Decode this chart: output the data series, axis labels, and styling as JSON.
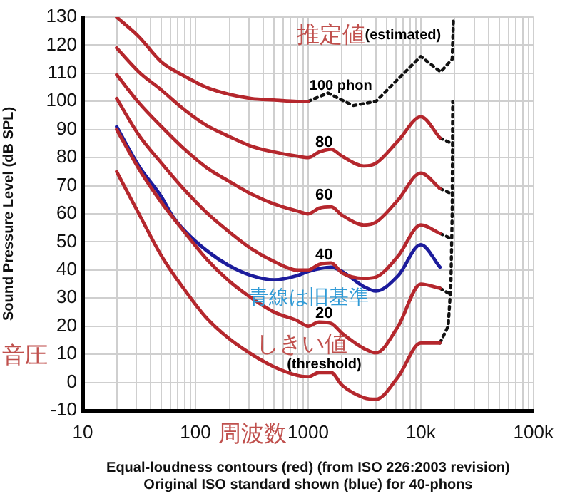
{
  "chart_data": {
    "type": "line",
    "xlabel": "Equal-loudness contours (red) (from ISO 226:2003 revision)\nOriginal ISO standard shown (blue) for 40-phons",
    "ylabel": "Sound Pressure Level (dB SPL)",
    "log": "x",
    "xlim": [
      10,
      100000
    ],
    "ylim": [
      -10,
      130
    ],
    "xticks": [
      10,
      {
        "value": 20,
        "label": null
      },
      {
        "value": 30,
        "label": null
      },
      {
        "value": 40,
        "label": null
      },
      {
        "value": 50,
        "label": null
      },
      {
        "value": 60,
        "label": null
      },
      {
        "value": 70,
        "label": null
      },
      {
        "value": 80,
        "label": null
      },
      {
        "value": 90,
        "label": null
      },
      100,
      {
        "value": 200,
        "label": null
      },
      {
        "value": 300,
        "label": null
      },
      {
        "value": 400,
        "label": null
      },
      {
        "value": 500,
        "label": null
      },
      {
        "value": 600,
        "label": null
      },
      {
        "value": 700,
        "label": null
      },
      {
        "value": 800,
        "label": null
      },
      {
        "value": 900,
        "label": null
      },
      1000,
      {
        "value": 2000,
        "label": null
      },
      {
        "value": 3000,
        "label": null
      },
      {
        "value": 4000,
        "label": null
      },
      {
        "value": 5000,
        "label": null
      },
      {
        "value": 6000,
        "label": null
      },
      {
        "value": 7000,
        "label": null
      },
      {
        "value": 8000,
        "label": null
      },
      {
        "value": 9000,
        "label": null
      },
      {
        "value": 10000,
        "label": "10k"
      },
      {
        "value": 20000,
        "label": null
      },
      {
        "value": 30000,
        "label": null
      },
      {
        "value": 40000,
        "label": null
      },
      {
        "value": 50000,
        "label": null
      },
      {
        "value": 60000,
        "label": null
      },
      {
        "value": 70000,
        "label": null
      },
      {
        "value": 80000,
        "label": null
      },
      {
        "value": 90000,
        "label": null
      },
      {
        "value": 100000,
        "label": "100k"
      }
    ],
    "yticks": [
      -10,
      0,
      10,
      20,
      30,
      40,
      50,
      60,
      70,
      80,
      90,
      100,
      110,
      120,
      130
    ],
    "grid": true,
    "legend": false,
    "marker": "none",
    "series": [
      {
        "color": "#b5272d",
        "line_style": "solid",
        "x": [
          20,
          31.5,
          50,
          80,
          125,
          200,
          315,
          500,
          800,
          1000
        ],
        "values": [
          130,
          123,
          114,
          109,
          105,
          102.5,
          101,
          100.5,
          100,
          100
        ]
      },
      {
        "color": "#b5272d",
        "line_style": "solid",
        "x": [
          20,
          31.5,
          50,
          80,
          125,
          200,
          315,
          500,
          800,
          1000,
          1250,
          1600,
          2000,
          3150,
          4000,
          6300,
          10000,
          14800
        ],
        "values": [
          119,
          110.5,
          104,
          97,
          91.5,
          87.5,
          84,
          82,
          80.5,
          80,
          82,
          83,
          80.5,
          77,
          78,
          86,
          94.5,
          87
        ]
      },
      {
        "color": "#b5272d",
        "line_style": "solid",
        "x": [
          20,
          31.5,
          50,
          80,
          125,
          200,
          315,
          500,
          800,
          1000,
          1250,
          1600,
          2000,
          3150,
          4000,
          6300,
          10000,
          14800
        ],
        "values": [
          109.5,
          99.5,
          91,
          83,
          76.5,
          71.5,
          67,
          63.5,
          61,
          60,
          62,
          62.5,
          59.5,
          56,
          57,
          65,
          74.5,
          69
        ]
      },
      {
        "color": "#b5272d",
        "line_style": "solid",
        "x": [
          20,
          31.5,
          50,
          80,
          125,
          200,
          315,
          500,
          800,
          1000,
          1250,
          1600,
          2000,
          3150,
          4000,
          6300,
          10000,
          14800
        ],
        "values": [
          101,
          88,
          78,
          68.5,
          60.5,
          53.5,
          47.5,
          43,
          40,
          40,
          42,
          42.5,
          39,
          37,
          37.5,
          45,
          56,
          53
        ]
      },
      {
        "color": "#b5272d",
        "line_style": "solid",
        "x": [
          20,
          31.5,
          50,
          80,
          125,
          200,
          315,
          500,
          800,
          1000,
          1250,
          1600,
          2000,
          3150,
          4000,
          6300,
          10000,
          14800
        ],
        "values": [
          90,
          76,
          64,
          53.5,
          44,
          36,
          30,
          25,
          22,
          20,
          21.5,
          21,
          17.5,
          12,
          10.5,
          20,
          35,
          33.5
        ]
      },
      {
        "color": "#b5272d",
        "line_style": "solid",
        "x": [
          20,
          31.5,
          50,
          80,
          125,
          200,
          315,
          500,
          800,
          1000,
          1250,
          1600,
          2000,
          3150,
          4000,
          6300,
          10000,
          14800
        ],
        "values": [
          75,
          60,
          45,
          33,
          23,
          15.5,
          10,
          5.5,
          2.5,
          2,
          3.5,
          3.5,
          -1,
          -5.5,
          -6,
          2,
          14,
          14
        ]
      },
      {
        "color": "#1c1c9c",
        "line_style": "solid",
        "x": [
          20,
          31.5,
          50,
          63,
          80,
          125,
          200,
          315,
          500,
          800,
          1000,
          1600,
          2000,
          3150,
          4000,
          6300,
          10000,
          14800
        ],
        "values": [
          91,
          77,
          66,
          59,
          54,
          47,
          41.5,
          38,
          36.5,
          38,
          39.5,
          41,
          39.5,
          34,
          32.5,
          38,
          49,
          41
        ]
      },
      {
        "color": "#111111",
        "line_style": "dotted",
        "x": [
          1000,
          1500,
          2500,
          4000,
          6300,
          10000,
          15000,
          19000,
          19500
        ],
        "values": [
          100,
          103,
          98.5,
          100,
          108,
          116,
          110.5,
          115,
          130
        ]
      },
      {
        "color": "#111111",
        "line_style": "dotted",
        "x": [
          14800,
          17500,
          18500,
          19000,
          19200
        ],
        "values": [
          14,
          20,
          35,
          60,
          100
        ]
      },
      {
        "color": "#111111",
        "line_style": "dotted",
        "x": [
          14800,
          19000
        ],
        "values": [
          87,
          85
        ]
      },
      {
        "color": "#111111",
        "line_style": "dotted",
        "x": [
          14800,
          19000
        ],
        "values": [
          69,
          67
        ]
      },
      {
        "color": "#111111",
        "line_style": "dotted",
        "x": [
          14800,
          19000
        ],
        "values": [
          53,
          51
        ]
      },
      {
        "color": "#111111",
        "line_style": "dotted",
        "x": [
          14800,
          19000
        ],
        "values": [
          33.5,
          31
        ]
      }
    ],
    "annotations": [
      "推定値",
      "(estimated)",
      "100 phon",
      "80",
      "60",
      "40",
      "青線は旧基準",
      "20",
      "しきい値",
      "(threshold)",
      "音圧",
      "周波数"
    ]
  }
}
